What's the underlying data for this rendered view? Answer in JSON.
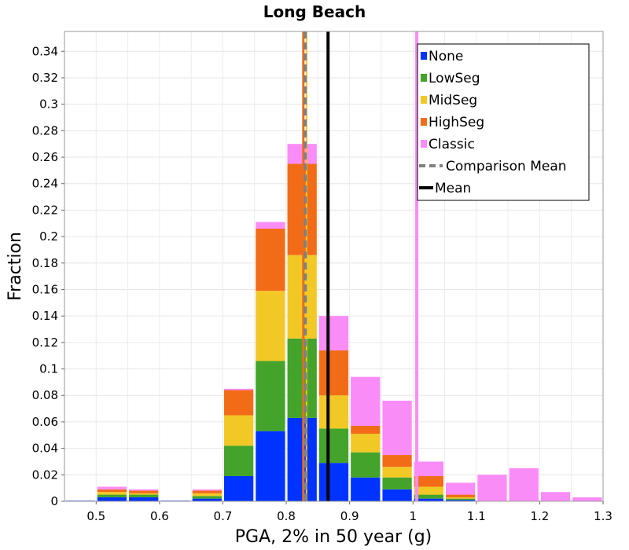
{
  "chart_data": {
    "type": "bar",
    "stacked": true,
    "title": "Long Beach",
    "xlabel": "PGA, 2% in 50 year (g)",
    "ylabel": "Fraction",
    "xlim": [
      0.45,
      1.3
    ],
    "ylim": [
      0,
      0.355
    ],
    "grid": true,
    "legend_position": "top-right",
    "bin_width": 0.05,
    "x": [
      0.475,
      0.525,
      0.575,
      0.625,
      0.675,
      0.725,
      0.775,
      0.825,
      0.875,
      0.925,
      0.975,
      1.025,
      1.075,
      1.125,
      1.175,
      1.225,
      1.275
    ],
    "series": [
      {
        "name": "None",
        "color": "#0033ff",
        "values": [
          0.0005,
          0.003,
          0.003,
          0.0005,
          0.002,
          0.019,
          0.053,
          0.063,
          0.029,
          0.018,
          0.009,
          0.002,
          0.001,
          0,
          0,
          0,
          0
        ]
      },
      {
        "name": "LowSeg",
        "color": "#44a32a",
        "values": [
          0,
          0.002,
          0.002,
          0,
          0.002,
          0.023,
          0.053,
          0.06,
          0.026,
          0.019,
          0.009,
          0.003,
          0.001,
          0,
          0,
          0,
          0
        ]
      },
      {
        "name": "MidSeg",
        "color": "#f2c826",
        "values": [
          0,
          0.002,
          0.001,
          0,
          0.002,
          0.023,
          0.053,
          0.063,
          0.025,
          0.014,
          0.008,
          0.006,
          0.001,
          0,
          0,
          0,
          0
        ]
      },
      {
        "name": "HighSeg",
        "color": "#f26c18",
        "values": [
          0,
          0.002,
          0.002,
          0,
          0.002,
          0.019,
          0.047,
          0.069,
          0.034,
          0.006,
          0.009,
          0.008,
          0.002,
          0,
          0,
          0,
          0
        ]
      },
      {
        "name": "Classic",
        "color": "#fa8cf8",
        "values": [
          0,
          0.002,
          0.001,
          0,
          0.001,
          0.001,
          0.005,
          0.015,
          0.026,
          0.037,
          0.041,
          0.011,
          0.009,
          0.02,
          0.025,
          0.007,
          0.003
        ]
      }
    ],
    "vlines": [
      {
        "name": "Classic (mean)",
        "x": 1.006,
        "color": "#fa8cf8",
        "width": 4,
        "dash": false,
        "legend": false
      },
      {
        "name": "HighSeg (mean)",
        "x": 0.827,
        "color": "#f26c18",
        "width": 3,
        "dash": false,
        "legend": false
      },
      {
        "name": "MidSeg (mean)",
        "x": 0.832,
        "color": "#f2c826",
        "width": 2,
        "dash": false,
        "legend": false
      },
      {
        "name": "Comparison Mean",
        "x": 0.83,
        "color": "#808080",
        "width": 4,
        "dash": true,
        "legend": true
      },
      {
        "name": "Mean",
        "x": 0.866,
        "color": "#000000",
        "width": 4,
        "dash": false,
        "legend": true
      }
    ],
    "yticks": [
      "0",
      "0.02",
      "0.04",
      "0.06",
      "0.08",
      "0.1",
      "0.12",
      "0.14",
      "0.16",
      "0.18",
      "0.2",
      "0.22",
      "0.24",
      "0.26",
      "0.28",
      "0.3",
      "0.32",
      "0.34"
    ],
    "xticks": [
      "0.5",
      "0.6",
      "0.7",
      "0.8",
      "0.9",
      "1",
      "1.1",
      "1.2",
      "1.3"
    ],
    "legend": [
      {
        "label": "None",
        "color": "#0033ff",
        "kind": "box"
      },
      {
        "label": "LowSeg",
        "color": "#44a32a",
        "kind": "box"
      },
      {
        "label": "MidSeg",
        "color": "#f2c826",
        "kind": "box"
      },
      {
        "label": "HighSeg",
        "color": "#f26c18",
        "kind": "box"
      },
      {
        "label": "Classic",
        "color": "#fa8cf8",
        "kind": "box"
      },
      {
        "label": "Comparison Mean",
        "color": "#808080",
        "kind": "dash"
      },
      {
        "label": "Mean",
        "color": "#000000",
        "kind": "line"
      }
    ]
  }
}
